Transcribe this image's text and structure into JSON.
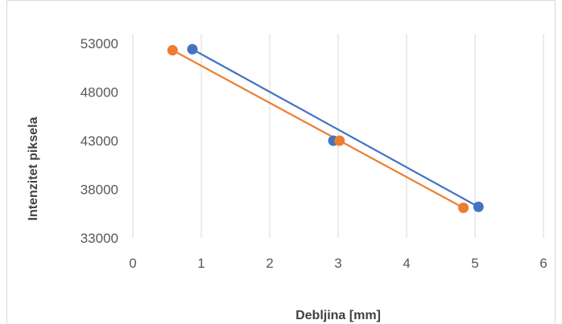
{
  "chart_data": {
    "type": "scatter",
    "title": "",
    "xlabel": "Debljina [mm]",
    "ylabel": "Intenzitet piksela",
    "xlim": [
      0,
      6
    ],
    "ylim": [
      33000,
      53000
    ],
    "xticks": [
      "0",
      "1",
      "2",
      "3",
      "4",
      "5",
      "6"
    ],
    "yticks": [
      "33000",
      "38000",
      "43000",
      "48000",
      "53000"
    ],
    "grid": "vertical",
    "legend": "none",
    "series": [
      {
        "color": "#4472C4",
        "points": [
          {
            "x": 0.87,
            "y": 52400
          },
          {
            "x": 2.93,
            "y": 43000
          },
          {
            "x": 5.05,
            "y": 36200
          }
        ],
        "trendline": [
          {
            "x": 0.87,
            "y": 52400
          },
          {
            "x": 5.05,
            "y": 36200
          }
        ]
      },
      {
        "color": "#ED7D31",
        "points": [
          {
            "x": 0.58,
            "y": 52300
          },
          {
            "x": 3.02,
            "y": 43000
          },
          {
            "x": 4.83,
            "y": 36100
          }
        ],
        "trendline": [
          {
            "x": 0.58,
            "y": 52300
          },
          {
            "x": 4.83,
            "y": 36100
          }
        ]
      }
    ]
  }
}
